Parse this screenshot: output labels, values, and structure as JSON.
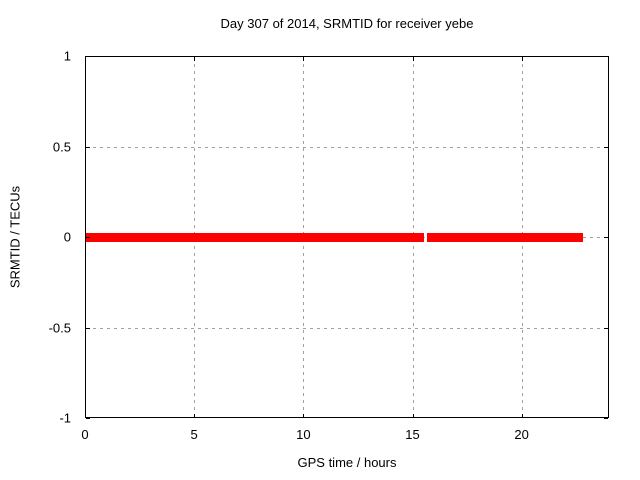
{
  "window": {
    "background": "#ffffff"
  },
  "colors": {
    "background": "#ffffff",
    "border": "#000000",
    "text": "#000000",
    "grid": "#a0a0a0",
    "series_red": "#ff0000"
  },
  "chart_data": {
    "type": "line",
    "title": "Day 307 of 2014, SRMTID for receiver yebe",
    "xlabel": "GPS time / hours",
    "ylabel": "SRMTID / TECUs",
    "xlim": [
      0,
      24
    ],
    "ylim": [
      -1,
      1
    ],
    "grid": true,
    "legend": "none",
    "xticks": [
      {
        "value": 0,
        "label": "0"
      },
      {
        "value": 5,
        "label": "5"
      },
      {
        "value": 10,
        "label": "10"
      },
      {
        "value": 15,
        "label": "15"
      },
      {
        "value": 20,
        "label": "20"
      }
    ],
    "yticks": [
      {
        "value": -1,
        "label": "-1"
      },
      {
        "value": -0.5,
        "label": "-0.5"
      },
      {
        "value": 0,
        "label": "0"
      },
      {
        "value": 0.5,
        "label": "0.5"
      },
      {
        "value": 1,
        "label": "1"
      }
    ],
    "series": [
      {
        "name": "SRMTID",
        "color": "#ff0000",
        "y_value": 0,
        "amplitude": 0.025,
        "segments": [
          {
            "x_start": 0,
            "x_end": 15.53
          },
          {
            "x_start": 15.66,
            "x_end": 22.82
          }
        ]
      }
    ]
  }
}
